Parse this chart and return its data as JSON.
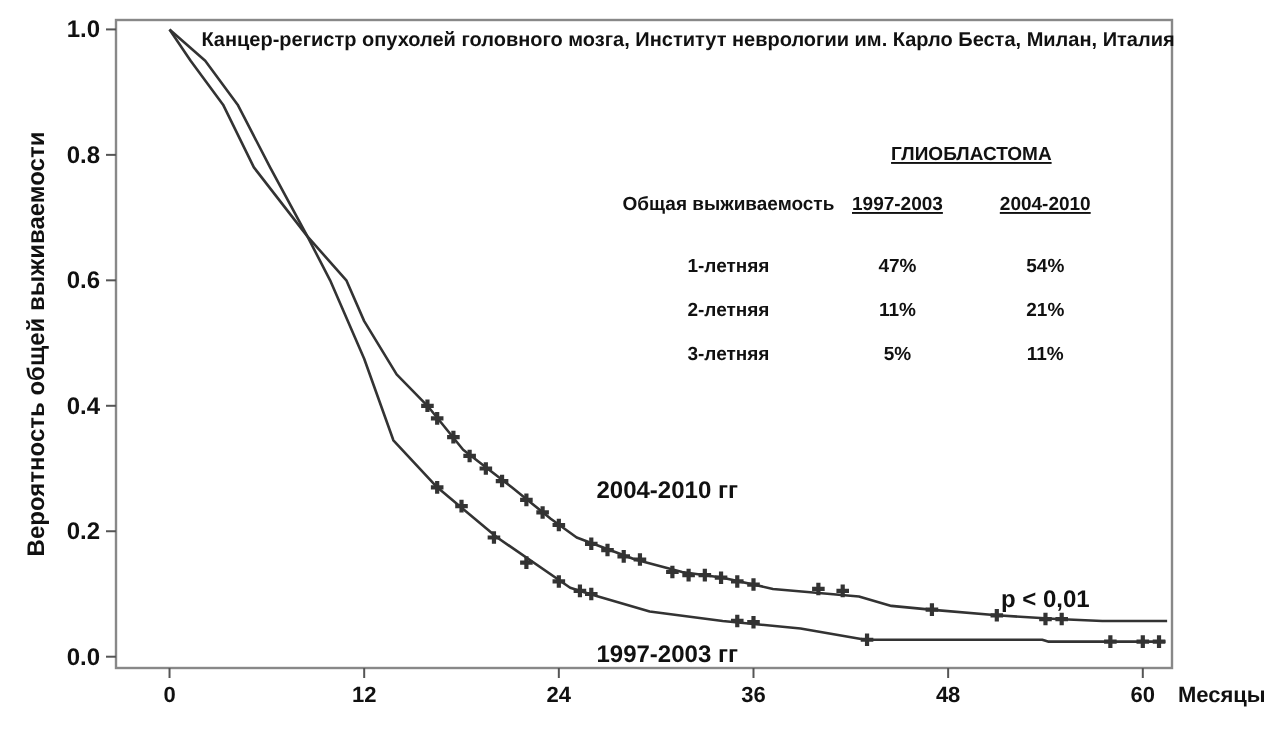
{
  "chart_data": {
    "type": "line",
    "title": "Канцер-регистр опухолей головного мозга, Институт неврологии им. Карло Беста, Милан, Италия",
    "xlabel": "Месяцы",
    "ylabel": "Вероятность общей выживаемости",
    "xlim": [
      -3.3,
      61.8
    ],
    "ylim": [
      -0.018,
      1.015
    ],
    "xticks": [
      0,
      12,
      24,
      36,
      48,
      60
    ],
    "yticks": [
      {
        "value": 0,
        "label": "0.0"
      },
      {
        "value": 0.2,
        "label": "0.2"
      },
      {
        "value": 0.4,
        "label": "0.4"
      },
      {
        "value": 0.6,
        "label": "0.6"
      },
      {
        "value": 0.8,
        "label": "0.8"
      },
      {
        "value": 1,
        "label": "1.0"
      }
    ],
    "line_style": "solid",
    "annotations": [
      "ГЛИОБЛАСТОМА",
      "Общая выживаемость",
      "1997-2003",
      "2004-2010",
      "1-летняя",
      "47%",
      "54%",
      "2-летняя",
      "11%",
      "21%",
      "3-летняя",
      "5%",
      "11%",
      "p < 0,01"
    ],
    "series": [
      {
        "name": "2004-2010 гг",
        "color": "#333333",
        "x": [
          0,
          1.3,
          3.3,
          5.2,
          8.5,
          10.9,
          12,
          14,
          15.9,
          18.1,
          21.1,
          23.5,
          25.1,
          28.7,
          31.6,
          34.1,
          37.2,
          42.5,
          44.5,
          46.9,
          51,
          54.7,
          57.5,
          61.5
        ],
        "values": [
          1,
          0.95,
          0.88,
          0.78,
          0.67,
          0.6,
          0.535,
          0.45,
          0.4,
          0.33,
          0.27,
          0.22,
          0.19,
          0.155,
          0.135,
          0.126,
          0.108,
          0.096,
          0.081,
          0.075,
          0.066,
          0.06,
          0.057,
          0.057
        ]
      },
      {
        "name": "1997-2003 гг",
        "color": "#333333",
        "x": [
          0,
          2.2,
          4.2,
          6.2,
          8.5,
          9.9,
          12,
          13.8,
          16.5,
          20.2,
          24.7,
          25.9,
          29.6,
          34.1,
          38.9,
          42.9,
          53.8,
          54.2,
          61.4
        ],
        "values": [
          1,
          0.95,
          0.88,
          0.78,
          0.67,
          0.6,
          0.475,
          0.345,
          0.27,
          0.19,
          0.11,
          0.1,
          0.072,
          0.057,
          0.045,
          0.027,
          0.027,
          0.024,
          0.024
        ]
      },
      {
        "type": "scatter",
        "marker": "cross",
        "color": "#333333",
        "x": [
          15.9,
          16.5,
          17.5,
          18.5,
          19.5,
          20.5,
          22,
          23,
          24,
          26,
          27,
          28,
          29,
          31,
          32,
          33,
          34,
          35,
          36,
          40,
          41.5,
          47,
          51,
          54,
          55
        ],
        "values": [
          0.4,
          0.38,
          0.35,
          0.32,
          0.3,
          0.28,
          0.25,
          0.23,
          0.21,
          0.18,
          0.17,
          0.16,
          0.155,
          0.135,
          0.13,
          0.13,
          0.126,
          0.12,
          0.115,
          0.108,
          0.105,
          0.075,
          0.066,
          0.06,
          0.06
        ]
      },
      {
        "type": "scatter",
        "marker": "cross",
        "color": "#333333",
        "x": [
          16.5,
          18,
          20,
          22,
          24,
          25.3,
          26,
          35,
          36,
          43,
          58,
          60,
          61
        ],
        "values": [
          0.27,
          0.24,
          0.19,
          0.15,
          0.12,
          0.105,
          0.1,
          0.057,
          0.055,
          0.027,
          0.024,
          0.024,
          0.024
        ]
      }
    ]
  }
}
